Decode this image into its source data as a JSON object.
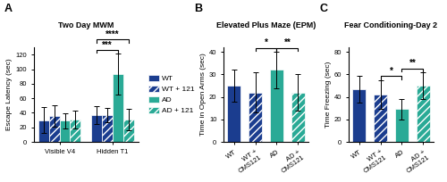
{
  "chart_data": [
    {
      "type": "bar",
      "title": "Two Day MWM",
      "ylabel": "Escape Latency (sec)",
      "categories": [
        "Visible V4",
        "Hidden T1"
      ],
      "series": [
        {
          "name": "WT",
          "color": "#1b3d8f",
          "values": [
            30,
            37
          ],
          "errors": [
            18,
            12
          ]
        },
        {
          "name": "WT + 121",
          "color": "#1b3d8f",
          "values": [
            36,
            37
          ],
          "errors": [
            15,
            10
          ]
        },
        {
          "name": "AD",
          "color": "#2aaa96",
          "values": [
            29,
            93
          ],
          "errors": [
            10,
            28
          ]
        },
        {
          "name": "AD + 121",
          "color": "#2aaa96",
          "values": [
            31,
            31
          ],
          "errors": [
            12,
            15
          ]
        }
      ],
      "ylim": [
        0,
        130
      ],
      "yticks": [
        0,
        20,
        40,
        60,
        80,
        100,
        120
      ],
      "legend": "center left",
      "annotations": [
        {
          "text": "***",
          "category": "Hidden T1",
          "from": "WT",
          "to": "AD"
        },
        {
          "text": "****",
          "category": "Hidden T1",
          "from": "WT",
          "to": "AD + 121"
        }
      ],
      "panel_label": "A"
    },
    {
      "type": "bar",
      "title": "Elevated Plus Maze (EPM)",
      "ylabel": "Time in Open Arms (sec)",
      "categories": [
        "WT",
        "WT +\nCMS121",
        "AD",
        "AD +\nCMS121"
      ],
      "values": [
        25,
        22,
        32,
        22
      ],
      "errors": [
        7,
        9,
        8,
        8
      ],
      "colors": [
        "#1b3d8f",
        "#1b3d8f",
        "#2aaa96",
        "#2aaa96"
      ],
      "ylim": [
        0,
        42
      ],
      "yticks": [
        0,
        10,
        20,
        30,
        40
      ],
      "annotations": [
        {
          "text": "*",
          "from": "WT +\nCMS121",
          "to": "AD"
        },
        {
          "text": "**",
          "from": "AD",
          "to": "AD +\nCMS121"
        }
      ],
      "panel_label": "B"
    },
    {
      "type": "bar",
      "title": "Fear Conditioning-Day 2",
      "ylabel": "Time Freezing (sec)",
      "categories": [
        "WT",
        "WT +\nCMS121",
        "AD",
        "AD +\nCMS121"
      ],
      "values": [
        47,
        42,
        29,
        50
      ],
      "errors": [
        12,
        13,
        9,
        12
      ],
      "colors": [
        "#1b3d8f",
        "#1b3d8f",
        "#2aaa96",
        "#2aaa96"
      ],
      "ylim": [
        0,
        84
      ],
      "yticks": [
        0,
        20,
        40,
        60,
        80
      ],
      "annotations": [
        {
          "text": "*",
          "from": "WT +\nCMS121",
          "to": "AD"
        },
        {
          "text": "**",
          "from": "AD",
          "to": "AD +\nCMS121"
        }
      ],
      "panel_label": "C"
    }
  ]
}
